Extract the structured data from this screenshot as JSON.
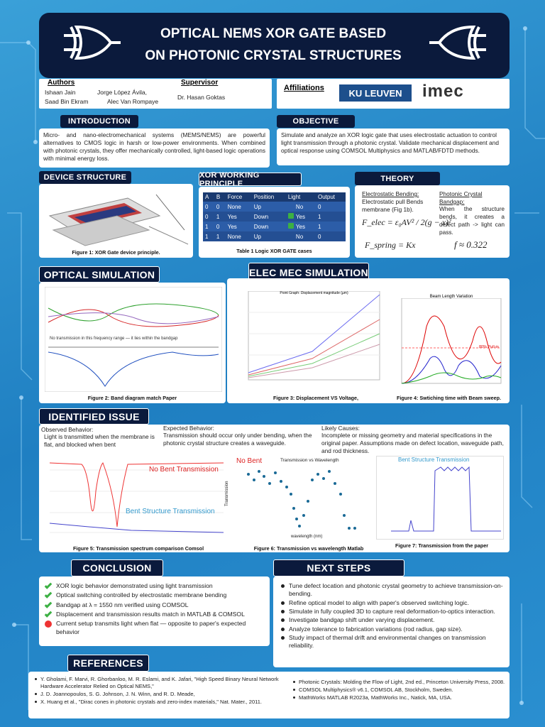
{
  "header": {
    "title_lines": [
      "OPTICAL NEMS XOR GATE BASED",
      "ON PHOTONIC CRYSTAL STRUCTURES"
    ]
  },
  "authors": {
    "heading": "Authors",
    "names": [
      "Ishaan Jain",
      "Jorge López Ávila,",
      "Saad Bin Ekram",
      "Alec Van Rompaye"
    ]
  },
  "supervisor": {
    "heading": "Supervisor",
    "name": "Dr. Hasan Goktas"
  },
  "affiliations": {
    "heading": "Affiliations",
    "logos": [
      "KU LEUVEN",
      "imec"
    ]
  },
  "introduction": {
    "heading": "INTRODUCTION",
    "text": "Micro- and nano-electromechanical systems (MEMS/NEMS) are powerful alternatives to CMOS logic in harsh or low-power environments. When combined with photonic crystals, they offer mechanically controlled, light-based logic operations with minimal energy loss."
  },
  "objective": {
    "heading": "OBJECTIVE",
    "text": "Simulate and analyze an XOR logic gate that uses electrostatic actuation to control light transmission through a photonic crystal. Validate mechanical displacement and optical response using COMSOL Multiphysics and MATLAB/FDTD methods."
  },
  "device_structure": {
    "heading": "DEVICE STRUCTURE",
    "caption": "Figure 1: XOR Gate device principle."
  },
  "xor_principle": {
    "heading": "XOR WORKING PRINCIPLE",
    "table": {
      "columns": [
        "A",
        "B",
        "Force",
        "Position",
        "Light",
        "Output"
      ],
      "rows": [
        [
          "0",
          "0",
          "None",
          "Up",
          "No",
          "0"
        ],
        [
          "0",
          "1",
          "Yes",
          "Down",
          "Yes",
          "1"
        ],
        [
          "1",
          "0",
          "Yes",
          "Down",
          "Yes",
          "1"
        ],
        [
          "1",
          "1",
          "None",
          "Up",
          "No",
          "0"
        ]
      ]
    },
    "caption": "Table 1 Logic XOR GATE cases"
  },
  "theory": {
    "heading": "THEORY",
    "left_heading": "Electrostatic Bending:",
    "left_text": "Electrostatic pull Bends membrane (Fig 1b).",
    "right_heading": "Photonic Crystal Bandgap:",
    "right_text": "When the structure bends, it creates a defect path -> light can pass.",
    "equations": [
      "F_elec = ε₀AV² / 2(g − x)²",
      "F_spring = Kx",
      "f ≈ 0.322"
    ]
  },
  "optical_simulation": {
    "heading": "OPTICAL SIMULATION",
    "annotation": "No transmission in this frequency range — it lies within the bandgap",
    "caption": "Figure 2: Band diagram match Paper"
  },
  "elec_mec_simulation": {
    "heading": "ELEC MEC SIMULATION",
    "figure3": {
      "title": "Point Graph: Displacement magnitude (µm)",
      "caption": "Figure 3: Displacement VS Voltage,"
    },
    "figure4": {
      "title": "Beam Length Variation",
      "annotation": "80% Pull-in",
      "caption": "Figure 4: Swtiching time with Beam sweep."
    }
  },
  "identified_issue": {
    "heading": "IDENTIFIED ISSUE",
    "observed_heading": "Observed Behavior:",
    "observed_text": "Light is transmitted when the membrane is flat, and blocked when bent",
    "expected_heading": "Expected Behavior:",
    "expected_text": "Transmission should occur only under bending, when the photonic crystal structure creates a waveguide.",
    "causes_heading": "Likely Causes:",
    "causes_text": "Incomplete or missing geometry and material specifications in the original paper. Assumptions made on defect location, waveguide path, and rod thickness.",
    "figure5": {
      "labels": [
        "No Bent Transmission",
        "Bent Structure Transmission"
      ],
      "caption": "Figure 5: Transmission spectrum comparison Comsol"
    },
    "figure6": {
      "label": "No Bent",
      "title": "Transmission vs Wavelength",
      "x_label": "wavelength (nm)",
      "y_label": "Transmission",
      "caption": "Figure 6: Transmission vs wavelength Matlab"
    },
    "figure7": {
      "title": "Bent Structure Transmission",
      "caption": "Figure 7: Transmission from the paper"
    }
  },
  "conclusion": {
    "heading": "CONCLUSION",
    "items": [
      {
        "status": "check",
        "text": "XOR logic behavior demonstrated using light transmission"
      },
      {
        "status": "check",
        "text": "Optical switching controlled by electrostatic membrane bending"
      },
      {
        "status": "check",
        "text": "Bandgap at λ = 1550 nm verified using COMSOL"
      },
      {
        "status": "check",
        "text": "Displacement and transmission results match in MATLAB & COMSOL"
      },
      {
        "status": "cross",
        "text": "Current setup transmits light when flat — opposite to paper's expected behavior"
      }
    ]
  },
  "next_steps": {
    "heading": "NEXT STEPS",
    "items": [
      "Tune defect location and photonic crystal geometry to achieve transmission-on-bending.",
      "Refine optical model to align with paper's observed switching logic.",
      "Simulate in fully coupled 3D to capture real deformation-to-optics interaction.",
      "Investigate bandgap shift under varying displacement.",
      "Analyze tolerance to fabrication variations (rod radius, gap size).",
      "Study impact of thermal drift and environmental changes on transmission reliability."
    ]
  },
  "references": {
    "heading": "REFERENCES",
    "left": [
      "Y. Gholami, F. Marvi, R. Ghorbanloo, M. R. Eslami, and K. Jafari, \"High Speed Binary Neural Network Hardware Accelerator Relied on Optical NEMS,\"",
      "J. D. Joannopoulos, S. G. Johnson, J. N. Winn, and R. D. Meade,",
      "X. Huang et al., \"Dirac cones in photonic crystals and zero-index materials,\" Nat. Mater., 2011."
    ],
    "right": [
      "Photonic Crystals: Molding the Flow of Light, 2nd ed., Princeton University Press, 2008.",
      "COMSOL Multiphysics® v6.1, COMSOL AB, Stockholm, Sweden.",
      "MathWorks MATLAB R2023a, MathWorks Inc., Natick, MA, USA."
    ]
  }
}
